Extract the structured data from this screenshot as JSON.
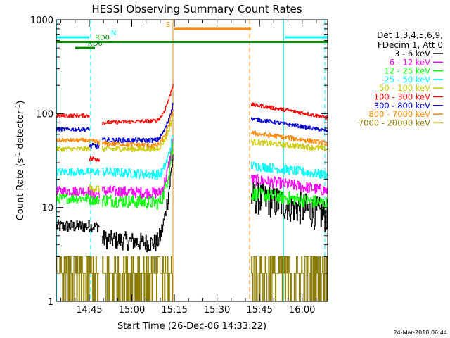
{
  "chart_data": {
    "type": "line",
    "title": "HESSI Observing Summary Count Rates",
    "xlabel": "Start Time (26-Dec-06 14:33:22)",
    "ylabel_main": "Count Rate (s",
    "ylabel_sup1": "-1",
    "ylabel_mid": " detector",
    "ylabel_sup2": "-1",
    "ylabel_end": ")",
    "y_scale": "log",
    "ylim": [
      1,
      1000
    ],
    "y_ticks": [
      {
        "v": 1,
        "label": "1"
      },
      {
        "v": 10,
        "label": "10"
      },
      {
        "v": 100,
        "label": "100"
      },
      {
        "v": 1000,
        "label": "1000"
      }
    ],
    "x_range": [
      "14:33:22",
      "16:09"
    ],
    "x_ticks": [
      {
        "t": "14:45",
        "label": "14:45"
      },
      {
        "t": "15:00",
        "label": "15:00"
      },
      {
        "t": "15:15",
        "label": "15:15"
      },
      {
        "t": "15:30",
        "label": "15:30"
      },
      {
        "t": "15:45",
        "label": "15:45"
      },
      {
        "t": "16:00",
        "label": "16:00"
      }
    ],
    "legend_position": "right",
    "legend_header": [
      "Det 1,3,4,5,6,9,",
      "FDecim 1, Att 0"
    ],
    "gaps": [
      [
        "14:45",
        "14:49"
      ],
      [
        "15:14",
        "15:42"
      ]
    ],
    "series": [
      {
        "name": "3 - 6 keV",
        "color": "#000000",
        "segments": [
          {
            "t0": "14:33:22",
            "t1": "14:45",
            "y0": 6.3,
            "y1": 6.3,
            "noise": 0.07
          },
          {
            "t0": "14:45",
            "t1": "14:48.5",
            "y0": 6.3,
            "y1": 6.3,
            "noise": 0.06
          },
          {
            "t0": "14:49.5",
            "t1": "15:14.5",
            "y0": 4.6,
            "y1": 4.0,
            "noise": 0.1,
            "rise_at": "15:08",
            "rise_to": 38
          },
          {
            "t0": "15:42",
            "t1": "16:09",
            "y0": 13,
            "y1": 8,
            "noise": 0.18
          }
        ]
      },
      {
        "name": "6 - 12 keV",
        "color": "#ff00ff",
        "segments": [
          {
            "t0": "14:33:22",
            "t1": "14:45",
            "y0": 15,
            "y1": 15,
            "noise": 0.05
          },
          {
            "t0": "14:45",
            "t1": "14:48.5",
            "y0": 14,
            "y1": 14,
            "noise": 0.05
          },
          {
            "t0": "14:49.5",
            "t1": "15:14.5",
            "y0": 15,
            "y1": 14,
            "noise": 0.06,
            "rise_at": "15:09",
            "rise_to": 55
          },
          {
            "t0": "15:42",
            "t1": "16:09",
            "y0": 20,
            "y1": 15,
            "noise": 0.06
          }
        ]
      },
      {
        "name": "12 - 25 keV",
        "color": "#00ff00",
        "segments": [
          {
            "t0": "14:33:22",
            "t1": "14:45",
            "y0": 12.5,
            "y1": 12.5,
            "noise": 0.05
          },
          {
            "t0": "14:45",
            "t1": "14:48.5",
            "y0": 12,
            "y1": 12,
            "noise": 0.05
          },
          {
            "t0": "14:49.5",
            "t1": "15:14.5",
            "y0": 12,
            "y1": 11,
            "noise": 0.07,
            "rise_at": "15:09",
            "rise_to": 50
          },
          {
            "t0": "15:42",
            "t1": "16:09",
            "y0": 14,
            "y1": 11,
            "noise": 0.07
          }
        ]
      },
      {
        "name": "25 - 50 keV",
        "color": "#00ffff",
        "segments": [
          {
            "t0": "14:33:22",
            "t1": "14:45",
            "y0": 24,
            "y1": 24,
            "noise": 0.04
          },
          {
            "t0": "14:45",
            "t1": "14:48.5",
            "y0": 24,
            "y1": 24,
            "noise": 0.04
          },
          {
            "t0": "14:49.5",
            "t1": "15:14.5",
            "y0": 24,
            "y1": 22,
            "noise": 0.05,
            "rise_at": "15:09",
            "rise_to": 60
          },
          {
            "t0": "15:42",
            "t1": "16:09",
            "y0": 28,
            "y1": 22,
            "noise": 0.05
          }
        ]
      },
      {
        "name": "50 - 100 keV",
        "color": "#cccc00",
        "segments": [
          {
            "t0": "14:33:22",
            "t1": "14:45",
            "y0": 42,
            "y1": 42,
            "noise": 0.025
          },
          {
            "t0": "14:45",
            "t1": "14:48.5",
            "y0": 16,
            "y1": 16,
            "noise": 0.04
          },
          {
            "t0": "14:49.5",
            "t1": "15:14.5",
            "y0": 42,
            "y1": 42,
            "noise": 0.03,
            "rise_at": "15:08",
            "rise_to": 95
          },
          {
            "t0": "15:42",
            "t1": "16:09",
            "y0": 50,
            "y1": 42,
            "noise": 0.03
          }
        ]
      },
      {
        "name": "100 - 300 keV",
        "color": "#ff0000",
        "segments": [
          {
            "t0": "14:33:22",
            "t1": "14:45",
            "y0": 95,
            "y1": 95,
            "noise": 0.02
          },
          {
            "t0": "14:45",
            "t1": "14:48.5",
            "y0": 33,
            "y1": 33,
            "noise": 0.03
          },
          {
            "t0": "14:49.5",
            "t1": "15:14.5",
            "y0": 80,
            "y1": 85,
            "noise": 0.02,
            "rise_at": "15:08",
            "rise_to": 210
          },
          {
            "t0": "15:42",
            "t1": "16:09",
            "y0": 125,
            "y1": 90,
            "noise": 0.02
          }
        ]
      },
      {
        "name": "300 - 800 keV",
        "color": "#0000cc",
        "segments": [
          {
            "t0": "14:33:22",
            "t1": "14:45",
            "y0": 68,
            "y1": 68,
            "noise": 0.02
          },
          {
            "t0": "14:45",
            "t1": "14:48.5",
            "y0": 45,
            "y1": 45,
            "noise": 0.03
          },
          {
            "t0": "14:49.5",
            "t1": "15:14.5",
            "y0": 52,
            "y1": 52,
            "noise": 0.025,
            "rise_at": "15:08",
            "rise_to": 130
          },
          {
            "t0": "15:42",
            "t1": "16:09",
            "y0": 88,
            "y1": 65,
            "noise": 0.02
          }
        ]
      },
      {
        "name": "800 - 7000 keV",
        "color": "#ff8800",
        "segments": [
          {
            "t0": "14:33:22",
            "t1": "14:45",
            "y0": 52,
            "y1": 52,
            "noise": 0.02
          },
          {
            "t0": "14:45",
            "t1": "14:48.5",
            "y0": 50,
            "y1": 50,
            "noise": 0.03
          },
          {
            "t0": "14:49.5",
            "t1": "15:14.5",
            "y0": 48,
            "y1": 45,
            "noise": 0.025,
            "rise_at": "15:08",
            "rise_to": 110
          },
          {
            "t0": "15:42",
            "t1": "16:09",
            "y0": 62,
            "y1": 48,
            "noise": 0.025
          }
        ]
      },
      {
        "name": "7000 - 20000 keV",
        "color": "#8b7d00",
        "segments": [
          {
            "t0": "14:33:22",
            "t1": "14:45",
            "y0": 2.5,
            "y1": 2.5,
            "noise": 0.12,
            "spiky": true
          },
          {
            "t0": "14:45",
            "t1": "14:48.5",
            "y0": 2.5,
            "y1": 2.5,
            "noise": 0.12,
            "spiky": true
          },
          {
            "t0": "14:49.5",
            "t1": "15:14.5",
            "y0": 2.2,
            "y1": 2.0,
            "noise": 0.14,
            "spiky": true
          },
          {
            "t0": "15:42",
            "t1": "16:09",
            "y0": 2.3,
            "y1": 2.0,
            "noise": 0.14,
            "spiky": true
          }
        ]
      }
    ],
    "flag_bars": [
      {
        "label": "N",
        "color": "#00ffff",
        "y": 650,
        "ranges": [
          [
            "14:33:22",
            "14:45"
          ],
          [
            "15:54",
            "16:09"
          ]
        ]
      },
      {
        "label": "S",
        "color": "#ff8800",
        "y": 800,
        "ranges": [
          [
            "15:15",
            "15:42"
          ]
        ]
      },
      {
        "label": "RD0",
        "color": "#008800",
        "y": 580,
        "ranges": [
          [
            "14:33:22",
            "16:09"
          ]
        ]
      },
      {
        "label": "RD6",
        "color": "#008800",
        "y": 500,
        "ranges": [
          [
            "14:40",
            "14:47"
          ]
        ]
      }
    ],
    "vertical_markers": [
      {
        "t": "14:33:30",
        "color": "#00ffff",
        "dashed": false
      },
      {
        "t": "14:45.5",
        "color": "#00ffff",
        "dashed": true
      },
      {
        "t": "15:14.5",
        "color": "#ff8800",
        "dashed": false
      },
      {
        "t": "15:41.5",
        "color": "#ff8800",
        "dashed": true
      },
      {
        "t": "15:53.5",
        "color": "#00ffff",
        "dashed": false
      },
      {
        "t": "16:08",
        "color": "#00ffff",
        "dashed": true
      }
    ]
  },
  "footer": {
    "timestamp": "24-Mar-2010 06:44"
  }
}
